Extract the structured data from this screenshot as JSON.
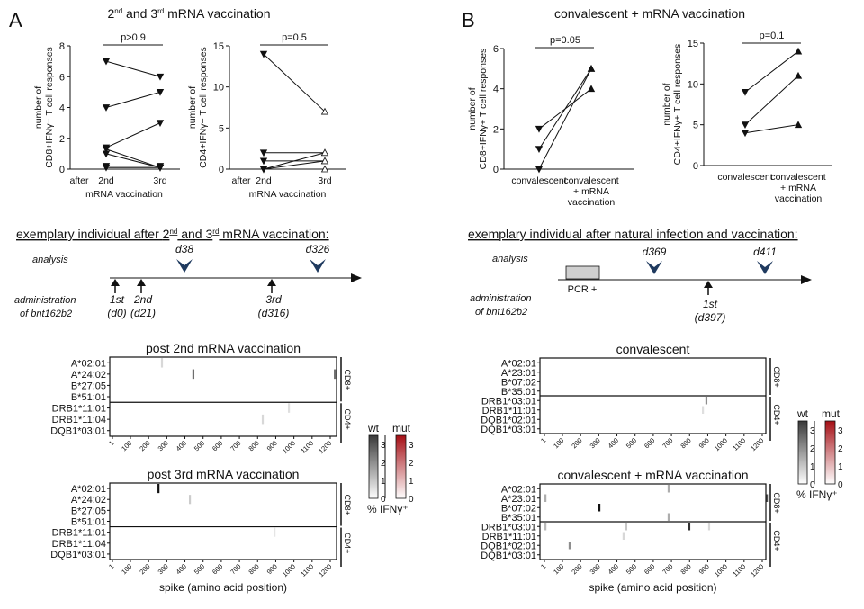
{
  "panel_a": {
    "letter": "A",
    "heading": "2nd and 3rd mRNA vaccination",
    "timeline": {
      "heading": "exemplary individual after 2nd and 3rd mRNA vaccination:",
      "analysis_label": "analysis",
      "admin_label": [
        "administration",
        "of bnt162b2"
      ],
      "analyses": [
        "d38",
        "d326"
      ],
      "doses": [
        {
          "label": "1st",
          "day": "(d0)"
        },
        {
          "label": "2nd",
          "day": "(d21)"
        },
        {
          "label": "3rd",
          "day": "(d316)"
        }
      ]
    }
  },
  "panel_b": {
    "letter": "B",
    "heading": "convalescent + mRNA vaccination",
    "timeline": {
      "heading": "exemplary individual after natural infection and vaccination:",
      "analysis_label": "analysis",
      "admin_label": [
        "administration",
        "of bnt162b2"
      ],
      "pcr_label": "PCR +",
      "analyses": [
        "d369",
        "d411"
      ],
      "doses": [
        {
          "label": "1st",
          "day": "(d397)"
        }
      ]
    }
  },
  "legend": {
    "wt_label": "wt",
    "mut_label": "mut",
    "ticks": [
      "0",
      "1",
      "2",
      "3"
    ],
    "title": "% IFNγ⁺",
    "wt_color": "#111111",
    "mut_color": "#a50f15"
  },
  "chart_data": [
    {
      "type": "scatter",
      "id": "a_cd8",
      "ylabel": [
        "number of",
        "CD8+IFNγ+ T cell responses"
      ],
      "xlabel": "mRNA vaccination",
      "categories": [
        "after",
        "2nd",
        "3rd"
      ],
      "ylim": [
        0,
        8
      ],
      "yticks": [
        "0",
        "2",
        "4",
        "6",
        "8"
      ],
      "pvalue": "p>0.9",
      "marker_left": "filled-down-triangle",
      "marker_right": "filled-down-triangle",
      "pairs": [
        [
          7,
          6
        ],
        [
          4,
          5
        ],
        [
          1.4,
          3
        ],
        [
          1.3,
          0.1
        ],
        [
          1,
          0.1
        ],
        [
          0.2,
          0.2
        ],
        [
          0.1,
          0.1
        ]
      ]
    },
    {
      "type": "scatter",
      "id": "a_cd4",
      "ylabel": [
        "number of",
        "CD4+IFNγ+ T cell responses"
      ],
      "xlabel": "mRNA vaccination",
      "categories": [
        "after",
        "2nd",
        "3rd"
      ],
      "ylim": [
        0,
        15
      ],
      "yticks": [
        "0",
        "5",
        "10",
        "15"
      ],
      "pvalue": "p=0.5",
      "marker_left": "filled-down-triangle",
      "marker_right": "open-up-triangle",
      "pairs": [
        [
          14,
          7
        ],
        [
          2,
          2
        ],
        [
          1,
          1
        ],
        [
          0,
          1
        ],
        [
          0,
          2
        ],
        [
          0,
          0
        ]
      ]
    },
    {
      "type": "scatter",
      "id": "b_cd8",
      "ylabel": [
        "number of",
        "CD8+IFNγ+ T cell responses"
      ],
      "xlabel": "",
      "categories": [
        "convalescent",
        "convalescent\n+ mRNA\nvaccination"
      ],
      "ylim": [
        0,
        6
      ],
      "yticks": [
        "0",
        "2",
        "4",
        "6"
      ],
      "pvalue": "p=0.05",
      "marker_left": "filled-down-triangle",
      "marker_right": "filled-up-triangle",
      "pairs": [
        [
          2,
          4
        ],
        [
          1,
          5
        ],
        [
          0,
          5
        ]
      ]
    },
    {
      "type": "scatter",
      "id": "b_cd4",
      "ylabel": [
        "number of",
        "CD4+IFNγ+ T cell responses"
      ],
      "xlabel": "",
      "categories": [
        "convalescent",
        "convalescent\n+ mRNA\nvaccination"
      ],
      "ylim": [
        0,
        15
      ],
      "yticks": [
        "0",
        "5",
        "10",
        "15"
      ],
      "pvalue": "p=0.1",
      "marker_left": "filled-down-triangle",
      "marker_right": "filled-up-triangle",
      "pairs": [
        [
          9,
          14
        ],
        [
          5,
          11
        ],
        [
          4,
          5
        ]
      ]
    },
    {
      "type": "heatmap",
      "id": "a_post2",
      "title": "post 2nd mRNA vaccination",
      "rows": [
        "A*02:01",
        "A*24:02",
        "B*27:05",
        "B*51:01",
        "DRB1*11:01",
        "DRB1*11:04",
        "DQB1*03:01"
      ],
      "groups": [
        "CD8+",
        "CD4+"
      ],
      "xticks": [
        "1",
        "100",
        "200",
        "300",
        "400",
        "500",
        "600",
        "700",
        "800",
        "900",
        "1000",
        "1100",
        "1200"
      ],
      "cells": [
        {
          "row": "A*02:01",
          "pos": 273,
          "value": 0.3,
          "variant": "wt"
        },
        {
          "row": "A*24:02",
          "pos": 446,
          "value": 2.0,
          "variant": "wt"
        },
        {
          "row": "A*24:02",
          "pos": 1225,
          "value": 2.0,
          "variant": "wt"
        },
        {
          "row": "DRB1*11:01",
          "pos": 972,
          "value": 0.2,
          "variant": "wt"
        },
        {
          "row": "DRB1*11:04",
          "pos": 828,
          "value": 0.3,
          "variant": "wt"
        }
      ]
    },
    {
      "type": "heatmap",
      "id": "a_post3",
      "title": "post 3rd mRNA vaccination",
      "xlabel": "spike (amino acid position)",
      "rows": [
        "A*02:01",
        "A*24:02",
        "B*27:05",
        "B*51:01",
        "DRB1*11:01",
        "DRB1*11:04",
        "DQB1*03:01"
      ],
      "groups": [
        "CD8+",
        "CD4+"
      ],
      "xticks": [
        "1",
        "100",
        "200",
        "300",
        "400",
        "500",
        "600",
        "700",
        "800",
        "900",
        "1000",
        "1100",
        "1200"
      ],
      "cells": [
        {
          "row": "A*02:01",
          "pos": 254,
          "value": 3.5,
          "variant": "wt"
        },
        {
          "row": "A*24:02",
          "pos": 427,
          "value": 0.5,
          "variant": "wt"
        },
        {
          "row": "DRB1*11:01",
          "pos": 893,
          "value": 0.1,
          "variant": "wt"
        }
      ]
    },
    {
      "type": "heatmap",
      "id": "b_conv",
      "title": "convalescent",
      "rows": [
        "A*02:01",
        "A*23:01",
        "B*07:02",
        "B*35:01",
        "DRB1*03:01",
        "DRB1*11:01",
        "DQB1*02:01",
        "DQB1*03:01"
      ],
      "groups": [
        "CD8+",
        "CD4+"
      ],
      "xticks": [
        "1",
        "100",
        "200",
        "300",
        "400",
        "500",
        "600",
        "700",
        "800",
        "900",
        "1000",
        "1100",
        "1200"
      ],
      "cells": [
        {
          "row": "DRB1*03:01",
          "pos": 892,
          "value": 1.5,
          "variant": "wt"
        },
        {
          "row": "DRB1*11:01",
          "pos": 873,
          "value": 0.2,
          "variant": "wt"
        }
      ]
    },
    {
      "type": "heatmap",
      "id": "b_conv_mrna",
      "title": "convalescent + mRNA vaccination",
      "xlabel": "spike (amino acid position)",
      "rows": [
        "A*02:01",
        "A*23:01",
        "B*07:02",
        "B*35:01",
        "DRB1*03:01",
        "DRB1*11:01",
        "DQB1*02:01",
        "DQB1*03:01"
      ],
      "groups": [
        "CD8+",
        "CD4+"
      ],
      "xticks": [
        "1",
        "100",
        "200",
        "300",
        "400",
        "500",
        "600",
        "700",
        "800",
        "900",
        "1000",
        "1100",
        "1200"
      ],
      "cells": [
        {
          "row": "A*02:01",
          "pos": 684,
          "value": 1.0,
          "variant": "wt"
        },
        {
          "row": "A*23:01",
          "pos": 6,
          "value": 1.0,
          "variant": "wt"
        },
        {
          "row": "A*23:01",
          "pos": 1225,
          "value": 2.5,
          "variant": "wt"
        },
        {
          "row": "B*07:02",
          "pos": 303,
          "value": 3.5,
          "variant": "wt"
        },
        {
          "row": "B*35:01",
          "pos": 684,
          "value": 1.0,
          "variant": "wt"
        },
        {
          "row": "DRB1*03:01",
          "pos": 6,
          "value": 0.8,
          "variant": "wt"
        },
        {
          "row": "DRB1*03:01",
          "pos": 451,
          "value": 0.6,
          "variant": "wt"
        },
        {
          "row": "DRB1*03:01",
          "pos": 798,
          "value": 3.0,
          "variant": "wt"
        },
        {
          "row": "DRB1*03:01",
          "pos": 907,
          "value": 0.3,
          "variant": "wt"
        },
        {
          "row": "DRB1*11:01",
          "pos": 436,
          "value": 0.3,
          "variant": "wt"
        },
        {
          "row": "DQB1*02:01",
          "pos": 139,
          "value": 1.5,
          "variant": "wt"
        }
      ]
    }
  ]
}
